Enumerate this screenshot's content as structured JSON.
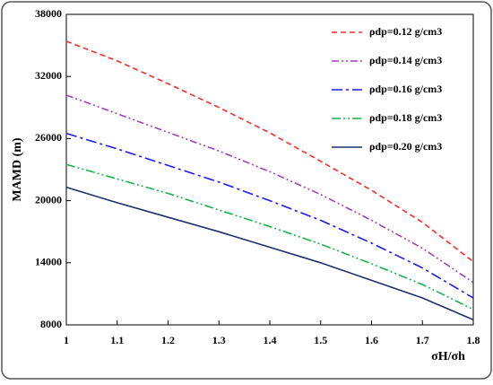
{
  "chart_data": {
    "type": "line",
    "xlabel": "σH/σh",
    "ylabel": "MAMD (m)",
    "x": [
      1,
      1.1,
      1.2,
      1.3,
      1.4,
      1.5,
      1.6,
      1.7,
      1.8
    ],
    "xlim": [
      1,
      1.8
    ],
    "xticks": [
      1,
      1.1,
      1.2,
      1.3,
      1.4,
      1.5,
      1.6,
      1.7,
      1.8
    ],
    "ylim": [
      8000,
      38000
    ],
    "yticks": [
      8000,
      14000,
      20000,
      26000,
      32000,
      38000
    ],
    "grid": false,
    "legend": "upper right",
    "series": [
      {
        "name": "ρdp=0.12 g/cm3",
        "color": "#ff2a2a",
        "dash": "6,4",
        "values": [
          35400,
          33500,
          31300,
          29000,
          26550,
          23800,
          21000,
          17900,
          14100
        ]
      },
      {
        "name": "ρdp=0.14 g/cm3",
        "color": "#a040c0",
        "dash": "8,3,2,3,2,3",
        "values": [
          30200,
          28400,
          26600,
          24800,
          22800,
          20600,
          18100,
          15400,
          12100
        ]
      },
      {
        "name": "ρdp=0.16 g/cm3",
        "color": "#1a1aff",
        "dash": "12,4,3,4",
        "values": [
          26500,
          25000,
          23400,
          21800,
          20000,
          18100,
          15900,
          13500,
          10600
        ]
      },
      {
        "name": "ρdp=0.18 g/cm3",
        "color": "#1ab34d",
        "dash": "10,3,2,3,2,3",
        "values": [
          23500,
          22100,
          20700,
          19100,
          17500,
          15800,
          13900,
          11900,
          9500
        ]
      },
      {
        "name": "ρdp=0.20 g/cm3",
        "color": "#1f2f6b",
        "dash": "",
        "values": [
          21300,
          19800,
          18400,
          17000,
          15500,
          14000,
          12300,
          10600,
          8500
        ]
      }
    ]
  }
}
